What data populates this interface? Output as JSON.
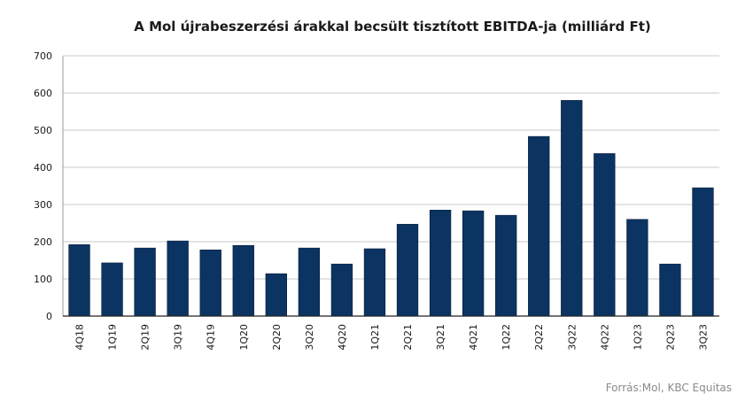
{
  "chart_data": {
    "type": "bar",
    "title": "A Mol újrabeszerzési árakkal becsült tisztított EBITDA-ja (milliárd Ft)",
    "categories": [
      "4Q18",
      "1Q19",
      "2Q19",
      "3Q19",
      "4Q19",
      "1Q20",
      "2Q20",
      "3Q20",
      "4Q20",
      "1Q21",
      "2Q21",
      "3Q21",
      "4Q21",
      "1Q22",
      "2Q22",
      "3Q22",
      "4Q22",
      "1Q23",
      "2Q23",
      "3Q23"
    ],
    "values": [
      192,
      143,
      183,
      202,
      178,
      190,
      114,
      183,
      140,
      181,
      247,
      285,
      283,
      271,
      483,
      580,
      437,
      260,
      140,
      345
    ],
    "ylim": [
      0,
      700
    ],
    "yticks": [
      0,
      100,
      200,
      300,
      400,
      500,
      600,
      700
    ],
    "grid": true,
    "bar_color": "#0b3463",
    "source": "Forrás:Mol, KBC Equitas"
  }
}
